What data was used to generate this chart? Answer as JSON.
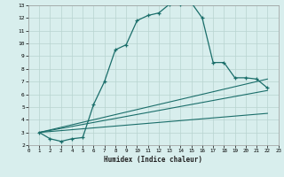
{
  "title": "",
  "xlabel": "Humidex (Indice chaleur)",
  "bg_color": "#d8eeed",
  "line_color": "#1a6e6a",
  "grid_color": "#b8d4d0",
  "xlim": [
    0,
    23
  ],
  "ylim": [
    2,
    13
  ],
  "xticks": [
    0,
    1,
    2,
    3,
    4,
    5,
    6,
    7,
    8,
    9,
    10,
    11,
    12,
    13,
    14,
    15,
    16,
    17,
    18,
    19,
    20,
    21,
    22,
    23
  ],
  "yticks": [
    2,
    3,
    4,
    5,
    6,
    7,
    8,
    9,
    10,
    11,
    12,
    13
  ],
  "curve1_x": [
    1,
    2,
    3,
    4,
    5,
    6,
    7,
    8,
    9,
    10,
    11,
    12,
    13,
    14,
    15,
    16,
    17,
    18,
    19,
    20,
    21,
    22
  ],
  "curve1_y": [
    3.0,
    2.5,
    2.3,
    2.5,
    2.6,
    5.2,
    7.0,
    9.5,
    9.9,
    11.8,
    12.2,
    12.4,
    13.1,
    13.1,
    13.2,
    12.0,
    8.5,
    8.5,
    7.3,
    7.3,
    7.2,
    6.5
  ],
  "curve2_x": [
    1,
    22
  ],
  "curve2_y": [
    3.0,
    7.2
  ],
  "curve3_x": [
    1,
    22
  ],
  "curve3_y": [
    3.0,
    6.3
  ],
  "curve4_x": [
    1,
    22
  ],
  "curve4_y": [
    3.0,
    4.5
  ]
}
